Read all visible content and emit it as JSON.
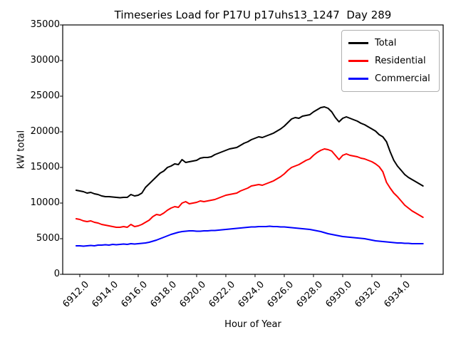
{
  "chart_data": {
    "type": "line",
    "title": "Timeseries Load for P17U p17uhs13_1247  Day 289",
    "xlabel": "Hour of Year",
    "ylabel": "kW total",
    "xlim": [
      6910.83,
      6936.88
    ],
    "ylim": [
      0,
      35000
    ],
    "grid": false,
    "legend_position": "upper right",
    "x_tick_rotation": 45,
    "x_ticks": [
      "6912.0",
      "6914.0",
      "6916.0",
      "6918.0",
      "6920.0",
      "6922.0",
      "6924.0",
      "6926.0",
      "6928.0",
      "6930.0",
      "6932.0",
      "6934.0"
    ],
    "y_ticks": [
      "0",
      "5000",
      "10000",
      "15000",
      "20000",
      "25000",
      "30000",
      "35000"
    ],
    "x": [
      6911.75,
      6912.0,
      6912.25,
      6912.5,
      6912.75,
      6913.0,
      6913.25,
      6913.5,
      6913.75,
      6914.0,
      6914.25,
      6914.5,
      6914.75,
      6915.0,
      6915.25,
      6915.5,
      6915.75,
      6916.0,
      6916.25,
      6916.5,
      6916.75,
      6917.0,
      6917.25,
      6917.5,
      6917.75,
      6918.0,
      6918.25,
      6918.5,
      6918.75,
      6919.0,
      6919.25,
      6919.5,
      6919.75,
      6920.0,
      6920.25,
      6920.5,
      6920.75,
      6921.0,
      6921.25,
      6921.5,
      6921.75,
      6922.0,
      6922.25,
      6922.5,
      6922.75,
      6923.0,
      6923.25,
      6923.5,
      6923.75,
      6924.0,
      6924.25,
      6924.5,
      6924.75,
      6925.0,
      6925.25,
      6925.5,
      6925.75,
      6926.0,
      6926.25,
      6926.5,
      6926.75,
      6927.0,
      6927.25,
      6927.5,
      6927.75,
      6928.0,
      6928.25,
      6928.5,
      6928.75,
      6929.0,
      6929.25,
      6929.5,
      6929.75,
      6930.0,
      6930.25,
      6930.5,
      6930.75,
      6931.0,
      6931.25,
      6931.5,
      6931.75,
      6932.0,
      6932.25,
      6932.5,
      6932.75,
      6933.0,
      6933.25,
      6933.5,
      6933.75,
      6934.0,
      6934.25,
      6934.5,
      6934.75,
      6935.0,
      6935.25,
      6935.5
    ],
    "series": [
      {
        "name": "Total",
        "color": "#000000",
        "values": [
          11800,
          11700,
          11600,
          11400,
          11500,
          11300,
          11200,
          11000,
          10900,
          10900,
          10850,
          10800,
          10750,
          10800,
          10800,
          11200,
          11000,
          11100,
          11400,
          12200,
          12700,
          13200,
          13700,
          14200,
          14500,
          15000,
          15200,
          15500,
          15400,
          16100,
          15700,
          15800,
          15900,
          16000,
          16300,
          16400,
          16400,
          16500,
          16800,
          17000,
          17200,
          17400,
          17600,
          17700,
          17800,
          18100,
          18400,
          18600,
          18900,
          19100,
          19300,
          19200,
          19400,
          19600,
          19800,
          20100,
          20400,
          20800,
          21300,
          21800,
          22000,
          21900,
          22200,
          22300,
          22400,
          22800,
          23100,
          23400,
          23500,
          23300,
          22800,
          22000,
          21400,
          21900,
          22100,
          21900,
          21700,
          21500,
          21200,
          21000,
          20700,
          20400,
          20100,
          19600,
          19300,
          18600,
          17200,
          16000,
          15200,
          14600,
          14000,
          13600,
          13300,
          13000,
          12700,
          12400
        ]
      },
      {
        "name": "Residential",
        "color": "#ff0000",
        "values": [
          7800,
          7700,
          7500,
          7400,
          7500,
          7300,
          7200,
          7000,
          6900,
          6800,
          6700,
          6600,
          6600,
          6700,
          6600,
          7000,
          6700,
          6800,
          7000,
          7300,
          7600,
          8100,
          8400,
          8300,
          8600,
          9000,
          9300,
          9500,
          9400,
          10000,
          10200,
          9900,
          10000,
          10100,
          10300,
          10200,
          10300,
          10400,
          10500,
          10700,
          10900,
          11100,
          11200,
          11300,
          11400,
          11700,
          11900,
          12100,
          12400,
          12500,
          12600,
          12500,
          12700,
          12900,
          13100,
          13400,
          13700,
          14100,
          14600,
          15000,
          15200,
          15400,
          15700,
          16000,
          16200,
          16700,
          17100,
          17400,
          17600,
          17500,
          17300,
          16700,
          16100,
          16700,
          16900,
          16700,
          16600,
          16500,
          16300,
          16200,
          16000,
          15800,
          15500,
          15100,
          14400,
          12900,
          12100,
          11400,
          10900,
          10300,
          9700,
          9300,
          8900,
          8600,
          8300,
          8000
        ]
      },
      {
        "name": "Commercial",
        "color": "#0000ff",
        "values": [
          4000,
          4000,
          3950,
          4000,
          4050,
          4000,
          4100,
          4100,
          4150,
          4100,
          4200,
          4150,
          4200,
          4250,
          4200,
          4300,
          4250,
          4300,
          4350,
          4400,
          4500,
          4650,
          4800,
          5000,
          5200,
          5400,
          5600,
          5750,
          5900,
          6000,
          6050,
          6100,
          6100,
          6050,
          6050,
          6100,
          6100,
          6150,
          6150,
          6200,
          6250,
          6300,
          6350,
          6400,
          6450,
          6500,
          6550,
          6600,
          6650,
          6650,
          6700,
          6700,
          6700,
          6750,
          6700,
          6700,
          6650,
          6650,
          6600,
          6550,
          6500,
          6450,
          6400,
          6350,
          6300,
          6200,
          6100,
          6000,
          5850,
          5700,
          5600,
          5500,
          5400,
          5300,
          5250,
          5200,
          5150,
          5100,
          5050,
          5000,
          4900,
          4800,
          4700,
          4650,
          4600,
          4550,
          4500,
          4450,
          4400,
          4400,
          4350,
          4350,
          4300,
          4300,
          4300,
          4300
        ]
      }
    ]
  }
}
